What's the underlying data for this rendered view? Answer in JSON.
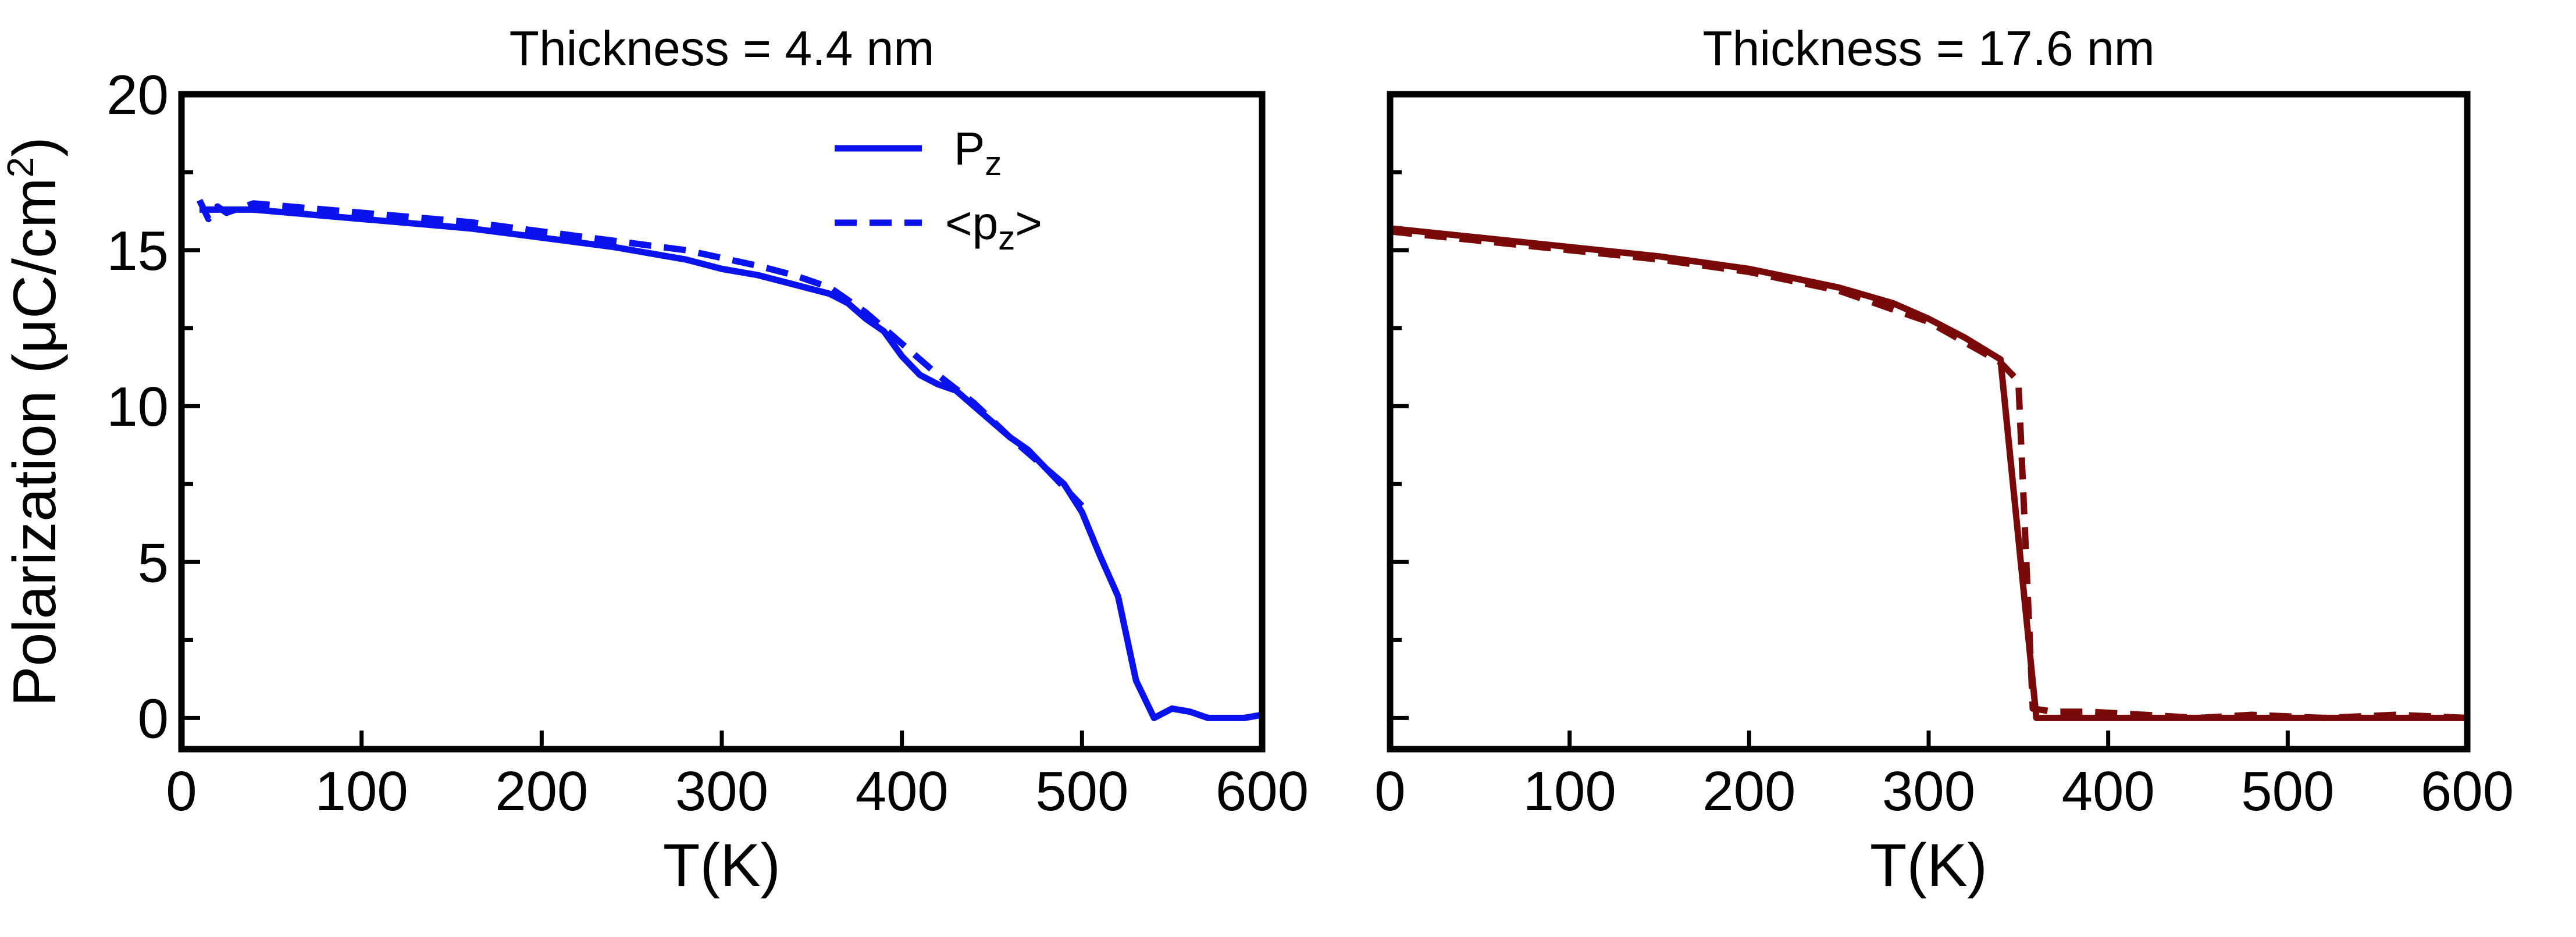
{
  "chart_data": [
    {
      "type": "line",
      "title": "Thickness = 4.4 nm",
      "xlabel": "T(K)",
      "ylabel": "Polarization (μC/cm²)",
      "ylabel_parts": {
        "main": "Polarization (μC/cm",
        "sup": "2",
        "close": ")"
      },
      "xlim": [
        0,
        600
      ],
      "ylim": [
        -1,
        20
      ],
      "xticks": [
        0,
        100,
        200,
        300,
        400,
        500,
        600
      ],
      "yticks": [
        0,
        5,
        10,
        15,
        20
      ],
      "yminor": [
        2.5,
        7.5,
        12.5,
        17.5
      ],
      "show_y_labels": true,
      "color": "#0a12ee",
      "legend": [
        {
          "label_main": "P",
          "label_sub": "z",
          "label_suffix": "",
          "label_prefix": "",
          "style": "solid"
        },
        {
          "label_prefix": "<p",
          "label_sub": "z",
          "label_suffix": ">",
          "label_main": "",
          "style": "dashed"
        }
      ],
      "series": [
        {
          "name": "P_z",
          "style": "solid",
          "x": [
            10,
            20,
            40,
            80,
            120,
            160,
            200,
            240,
            260,
            280,
            300,
            320,
            340,
            360,
            370,
            380,
            390,
            400,
            410,
            420,
            430,
            440,
            450,
            460,
            470,
            480,
            490,
            500,
            510,
            520,
            530,
            540,
            550,
            560,
            570,
            580,
            590,
            600
          ],
          "y": [
            16.3,
            16.3,
            16.3,
            16.1,
            15.9,
            15.7,
            15.4,
            15.1,
            14.9,
            14.7,
            14.4,
            14.2,
            13.9,
            13.6,
            13.3,
            12.8,
            12.4,
            11.6,
            11.0,
            10.7,
            10.5,
            10.0,
            9.5,
            9.0,
            8.6,
            8.0,
            7.5,
            6.6,
            5.2,
            3.9,
            1.2,
            0.0,
            0.3,
            0.2,
            0.0,
            0.0,
            0.0,
            0.1
          ]
        },
        {
          "name": "<p_z>",
          "style": "dashed",
          "x": [
            10,
            15,
            20,
            25,
            40,
            80,
            120,
            160,
            200,
            240,
            280,
            320,
            340,
            360,
            380,
            400,
            420,
            440,
            460,
            480,
            500
          ],
          "y": [
            16.6,
            16.0,
            16.4,
            16.2,
            16.5,
            16.3,
            16.1,
            15.9,
            15.6,
            15.3,
            15.0,
            14.5,
            14.2,
            13.8,
            13.0,
            12.0,
            11.0,
            10.1,
            9.0,
            8.0,
            6.8
          ]
        }
      ]
    },
    {
      "type": "line",
      "title": "Thickness = 17.6 nm",
      "xlabel": "T(K)",
      "ylabel": "",
      "xlim": [
        0,
        600
      ],
      "ylim": [
        -1,
        20
      ],
      "xticks": [
        0,
        100,
        200,
        300,
        400,
        500,
        600
      ],
      "yticks": [
        0,
        5,
        10,
        15,
        20
      ],
      "yminor": [
        2.5,
        7.5,
        12.5,
        17.5
      ],
      "show_y_labels": false,
      "color": "#7a0a0a",
      "legend": [],
      "series": [
        {
          "name": "P_z",
          "style": "solid",
          "x": [
            0,
            50,
            100,
            150,
            200,
            250,
            280,
            300,
            320,
            340,
            360,
            380,
            400,
            450,
            500,
            550,
            600
          ],
          "y": [
            15.7,
            15.4,
            15.1,
            14.8,
            14.4,
            13.8,
            13.3,
            12.8,
            12.2,
            11.5,
            0.0,
            0.0,
            0.0,
            0.0,
            0.0,
            0.0,
            0.0
          ]
        },
        {
          "name": "<p_z>",
          "style": "dashed",
          "x": [
            0,
            50,
            100,
            150,
            200,
            250,
            300,
            340,
            350,
            358,
            370,
            390,
            420,
            450,
            480,
            520,
            560,
            600
          ],
          "y": [
            15.6,
            15.3,
            15.0,
            14.7,
            14.3,
            13.7,
            12.7,
            11.4,
            10.8,
            0.3,
            0.2,
            0.2,
            0.1,
            0.0,
            0.1,
            0.0,
            0.1,
            0.0
          ]
        }
      ]
    }
  ]
}
